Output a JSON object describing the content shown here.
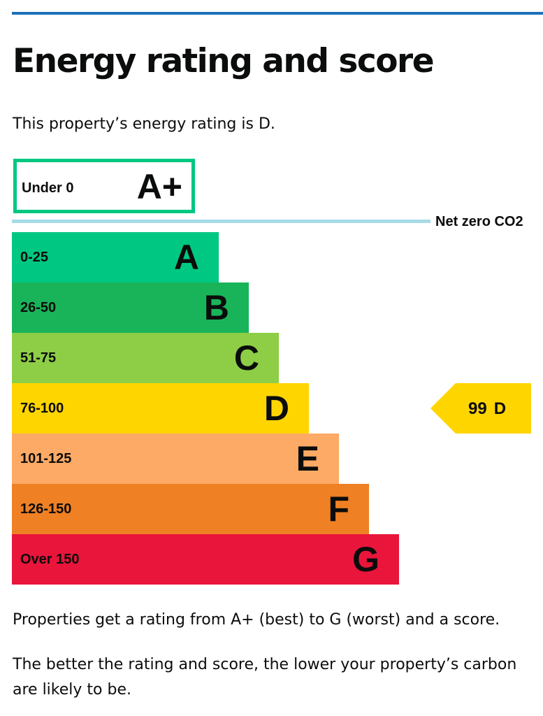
{
  "page": {
    "title": "Energy rating and score",
    "lead": "This property’s energy rating is D."
  },
  "top_band": {
    "range": "Under 0",
    "letter": "A+",
    "color": "#00c781"
  },
  "net_zero": {
    "label": "Net zero CO2",
    "line_color": "#a6dbe8"
  },
  "bands": [
    {
      "range": "0-25",
      "letter": "A",
      "color": "#00c781"
    },
    {
      "range": "26-50",
      "letter": "B",
      "color": "#19b459"
    },
    {
      "range": "51-75",
      "letter": "C",
      "color": "#8dce46"
    },
    {
      "range": "76-100",
      "letter": "D",
      "color": "#ffd500"
    },
    {
      "range": "101-125",
      "letter": "E",
      "color": "#fcaa65"
    },
    {
      "range": "126-150",
      "letter": "F",
      "color": "#ef8023"
    },
    {
      "range": "Over 150",
      "letter": "G",
      "color": "#e9153b"
    }
  ],
  "current": {
    "score": "99",
    "letter": "D",
    "color": "#ffd500"
  },
  "body": {
    "para1": "Properties get a rating from A+ (best) to G (worst) and a score.",
    "para2_line1": "The better the rating and score, the lower your property’s carbon",
    "para2_line2": "are likely to be."
  }
}
